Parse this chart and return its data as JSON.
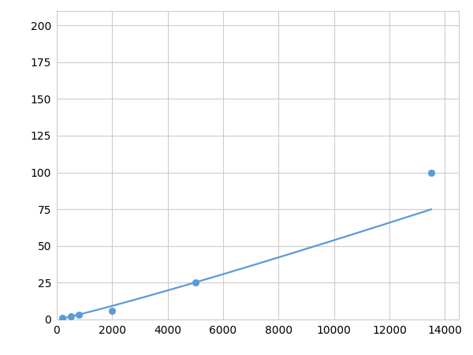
{
  "x": [
    200,
    500,
    800,
    2000,
    5000,
    13500
  ],
  "y": [
    1,
    2,
    3,
    6,
    25,
    100
  ],
  "line_color": "#5b9bd5",
  "marker_color": "#5b9bd5",
  "marker_size": 6,
  "line_width": 1.6,
  "xlim": [
    0,
    14500
  ],
  "ylim": [
    0,
    210
  ],
  "xticks": [
    0,
    2000,
    4000,
    6000,
    8000,
    10000,
    12000,
    14000
  ],
  "yticks": [
    0,
    25,
    50,
    75,
    100,
    125,
    150,
    175,
    200
  ],
  "grid": true,
  "background_color": "#ffffff",
  "tick_fontsize": 10
}
